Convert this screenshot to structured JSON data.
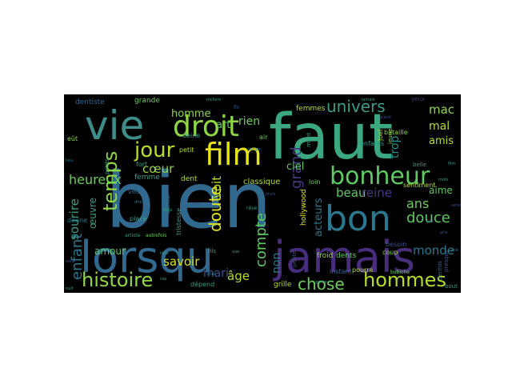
{
  "cloud": {
    "background": "#000000",
    "palette": {
      "teal": "#31688e",
      "tealLight": "#2a788e",
      "green": "#35b779",
      "greenLight": "#6ccd5a",
      "lime": "#b5de2b",
      "yellow": "#e5e419",
      "purple": "#443983",
      "purpleDark": "#472d7b",
      "violet": "#3b528b",
      "cyan": "#21918c",
      "seafoam": "#1f9e89"
    },
    "words": [
      {
        "text": "bien",
        "color": "#31688e"
      },
      {
        "text": "faut",
        "color": "#3ba881"
      },
      {
        "text": "lorsqu",
        "color": "#31688e"
      },
      {
        "text": "jamais",
        "color": "#472d7b"
      },
      {
        "text": "vie",
        "color": "#3e8d8a"
      },
      {
        "text": "droit",
        "color": "#8fd744"
      },
      {
        "text": "bon",
        "color": "#2a788e"
      },
      {
        "text": "bonheur",
        "color": "#5ec962"
      },
      {
        "text": "film",
        "color": "#e5e419"
      },
      {
        "text": "histoire",
        "color": "#8fd744"
      },
      {
        "text": "temps",
        "color": "#8fd744"
      },
      {
        "text": "jour",
        "color": "#b5de2b"
      },
      {
        "text": "hommes",
        "color": "#b5de2b"
      },
      {
        "text": "univers",
        "color": "#3b9c87"
      },
      {
        "text": "douce",
        "color": "#5ec962"
      },
      {
        "text": "enfant",
        "color": "#2a788e"
      },
      {
        "text": "chose",
        "color": "#6ccd5a"
      },
      {
        "text": "doute",
        "color": "#e5e419"
      },
      {
        "text": "compte",
        "color": "#5ec962"
      },
      {
        "text": "grand",
        "color": "#443983"
      },
      {
        "text": "heureux",
        "color": "#6ccd5a"
      },
      {
        "text": "sourire",
        "color": "#3b9c87"
      },
      {
        "text": "voit",
        "color": "#b5de2b"
      },
      {
        "text": "cœur",
        "color": "#8fd744"
      },
      {
        "text": "savoir",
        "color": "#d2e21b"
      },
      {
        "text": "âge",
        "color": "#b5de2b"
      },
      {
        "text": "beau",
        "color": "#5ec962"
      },
      {
        "text": "reine",
        "color": "#443983"
      },
      {
        "text": "ans",
        "color": "#6ccd5a"
      },
      {
        "text": "monde",
        "color": "#2a788e"
      },
      {
        "text": "mac",
        "color": "#8fd744"
      },
      {
        "text": "amis",
        "color": "#b5de2b"
      },
      {
        "text": "mal",
        "color": "#b5de2b"
      },
      {
        "text": "trop",
        "color": "#21918c"
      },
      {
        "text": "aime",
        "color": "#5ec962"
      },
      {
        "text": "non",
        "color": "#2a788e"
      },
      {
        "text": "mari",
        "color": "#3b528b"
      },
      {
        "text": "rien",
        "color": "#6ccd5a"
      },
      {
        "text": "homme",
        "color": "#8fd744"
      },
      {
        "text": "ciel",
        "color": "#5ec962"
      },
      {
        "text": "art",
        "color": "#5ec962"
      },
      {
        "text": "acteurs",
        "color": "#2a788e"
      },
      {
        "text": "amour",
        "color": "#5ec962"
      },
      {
        "text": "œuvre",
        "color": "#3b9c87"
      },
      {
        "text": "dentiste",
        "color": "#31688e"
      },
      {
        "text": "grande",
        "color": "#6ccd5a"
      },
      {
        "text": "femmes",
        "color": "#b5de2b"
      },
      {
        "text": "enfants",
        "color": "#1f9e89"
      },
      {
        "text": "classique",
        "color": "#b5de2b"
      },
      {
        "text": "hollywood",
        "color": "#e5e419"
      },
      {
        "text": "dent",
        "color": "#b5de2b"
      },
      {
        "text": "petit",
        "color": "#b5de2b"
      },
      {
        "text": "femme",
        "color": "#3b9c87"
      },
      {
        "text": "dents",
        "color": "#5ec962"
      },
      {
        "text": "froid",
        "color": "#8fd744"
      },
      {
        "text": "grille",
        "color": "#b5de2b"
      },
      {
        "text": "dépend",
        "color": "#3b9c87"
      },
      {
        "text": "instant",
        "color": "#31688e"
      },
      {
        "text": "sentiment",
        "color": "#b5de2b"
      },
      {
        "text": "bataille",
        "color": "#8fd744"
      },
      {
        "text": "pourra",
        "color": "#b5de2b"
      },
      {
        "text": "besoin",
        "color": "#3b528b"
      },
      {
        "text": "coup",
        "color": "#8fd744"
      },
      {
        "text": "joel",
        "color": "#b5de2b"
      },
      {
        "text": "yeux",
        "color": "#443983"
      },
      {
        "text": "permis",
        "color": "#31688e"
      },
      {
        "text": "presque",
        "color": "#3b528b"
      },
      {
        "text": "place",
        "color": "#3b9c87"
      },
      {
        "text": "fort",
        "color": "#3b9c87"
      },
      {
        "text": "eût",
        "color": "#8fd744"
      },
      {
        "text": "air",
        "color": "#6ccd5a"
      },
      {
        "text": "deine",
        "color": "#3b9c87"
      },
      {
        "text": "veut",
        "color": "#31688e"
      },
      {
        "text": "danse",
        "color": "#2a788e"
      },
      {
        "text": "tristesse",
        "color": "#3b9c87"
      },
      {
        "text": "fils",
        "color": "#3b9c87"
      },
      {
        "text": "mont",
        "color": "#3b9c87"
      },
      {
        "text": "petits",
        "color": "#3b9c87"
      },
      {
        "text": "donne",
        "color": "#2a788e"
      },
      {
        "text": "belle",
        "color": "#3b9c87"
      },
      {
        "text": "loin",
        "color": "#6ccd5a"
      },
      {
        "text": "bout",
        "color": "#3b9c87"
      },
      {
        "text": "petite",
        "color": "#3b528b"
      },
      {
        "text": "jeune",
        "color": "#8fd744"
      },
      {
        "text": "artiste",
        "color": "#3b9c87"
      },
      {
        "text": "autrefois",
        "color": "#6ccd5a"
      },
      {
        "text": "vrai",
        "color": "#2a788e"
      },
      {
        "text": "rêve",
        "color": "#3b9c87"
      },
      {
        "text": "fin",
        "color": "#3b528b"
      },
      {
        "text": "milliers",
        "color": "#3b9c87"
      },
      {
        "text": "bubiche",
        "color": "#6ccd5a"
      },
      {
        "text": "genre",
        "color": "#3b9c87"
      },
      {
        "text": "idée",
        "color": "#3b9c87"
      },
      {
        "text": "jamais",
        "color": "#3b9c87"
      },
      {
        "text": "ville",
        "color": "#3b528b"
      },
      {
        "text": "dire",
        "color": "#2a788e"
      },
      {
        "text": "mort",
        "color": "#3b528b"
      },
      {
        "text": "eau",
        "color": "#3b9c87"
      },
      {
        "text": "prix",
        "color": "#3b528b"
      },
      {
        "text": "temps",
        "color": "#2a788e"
      },
      {
        "text": "cas",
        "color": "#3b9c87"
      },
      {
        "text": "grand",
        "color": "#3b528b"
      },
      {
        "text": "film",
        "color": "#3b9c87"
      },
      {
        "text": "lieu",
        "color": "#2a788e"
      },
      {
        "text": "vers",
        "color": "#3b528b"
      },
      {
        "text": "nuit",
        "color": "#3b9c87"
      },
      {
        "text": "sens",
        "color": "#3b528b"
      },
      {
        "text": "joie",
        "color": "#2a788e"
      },
      {
        "text": "vue",
        "color": "#3b9c87"
      },
      {
        "text": "jours",
        "color": "#3b528b"
      },
      {
        "text": "mots",
        "color": "#3b9c87"
      }
    ]
  }
}
